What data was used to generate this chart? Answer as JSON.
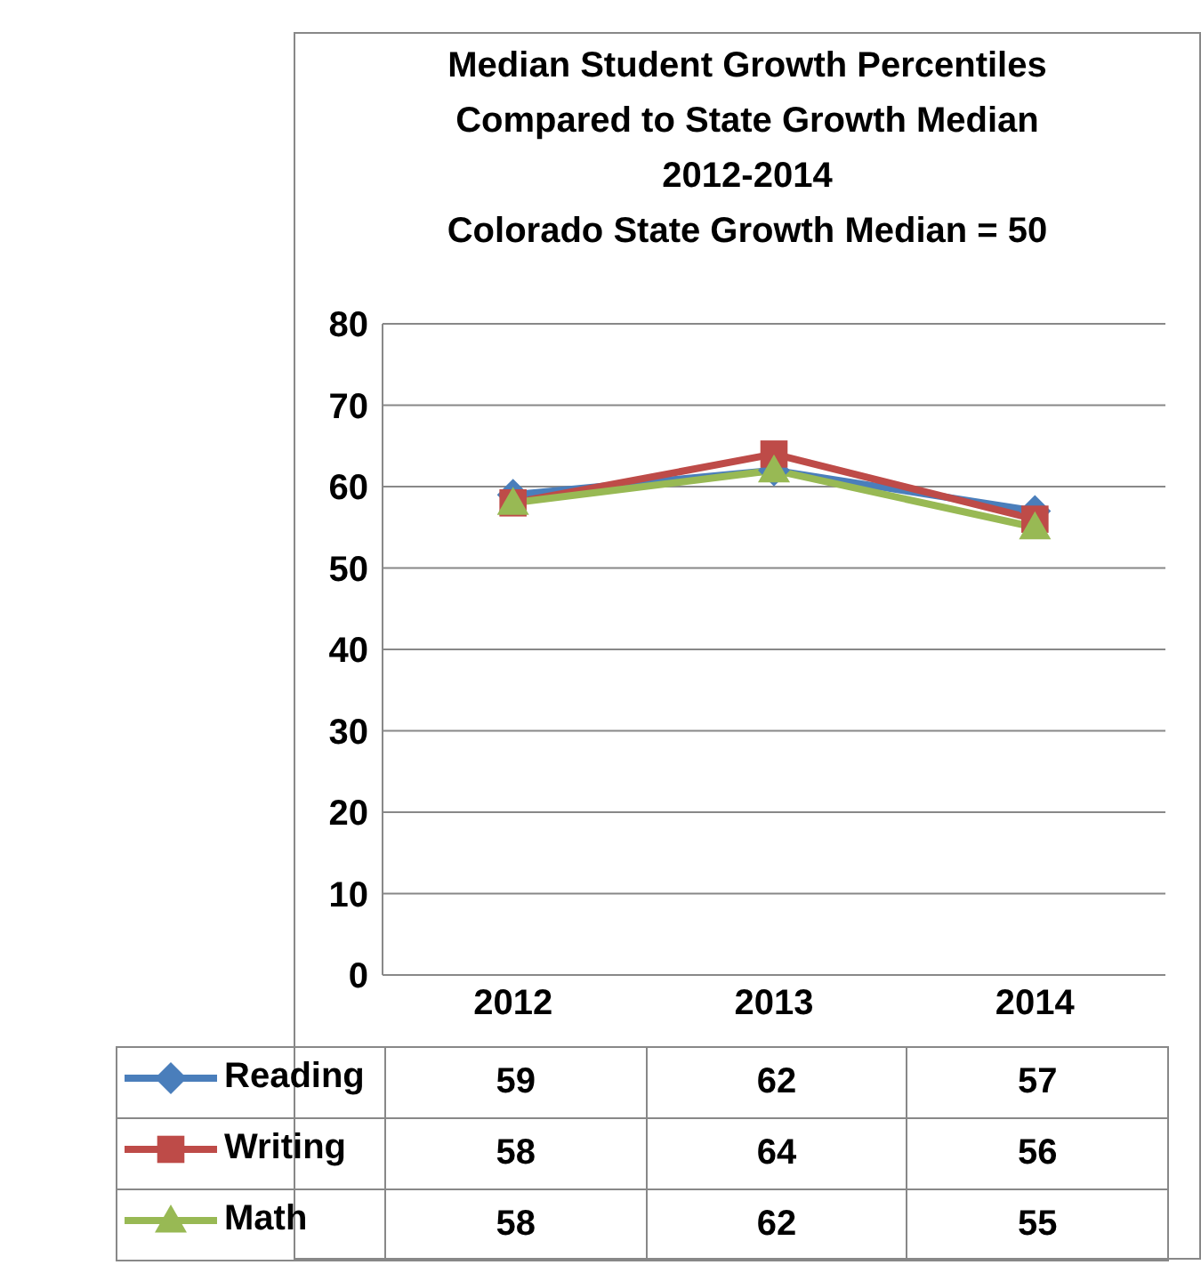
{
  "chart_data": {
    "type": "line",
    "title": "Median Student Growth Percentiles\nCompared to State Growth Median\n2012-2014\nColorado State Growth Median = 50",
    "categories": [
      "2012",
      "2013",
      "2014"
    ],
    "series": [
      {
        "name": "Reading",
        "color": "#4a7ebb",
        "marker": "diamond",
        "values": [
          59,
          62,
          57
        ]
      },
      {
        "name": "Writing",
        "color": "#be4b48",
        "marker": "square",
        "values": [
          58,
          64,
          56
        ]
      },
      {
        "name": "Math",
        "color": "#98b954",
        "marker": "triangle",
        "values": [
          58,
          62,
          55
        ]
      }
    ],
    "ylim": [
      0,
      80
    ],
    "yticks": [
      0,
      10,
      20,
      30,
      40,
      50,
      60,
      70,
      80
    ],
    "grid": "y",
    "legend": "bottom",
    "data_labels": true
  }
}
